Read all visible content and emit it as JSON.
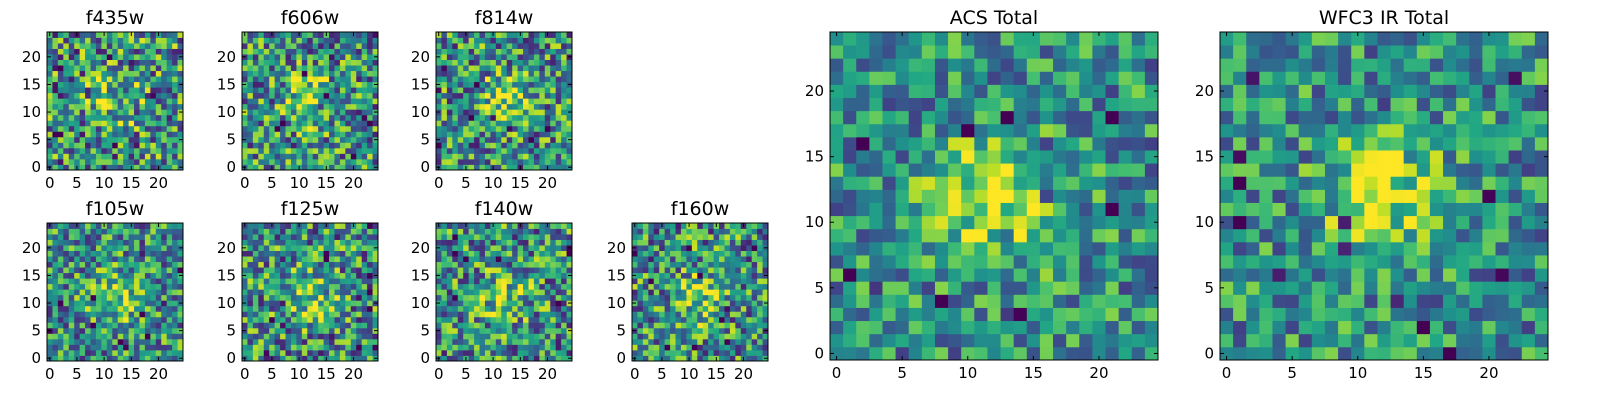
{
  "colormap": "viridis",
  "chart_data": [
    {
      "type": "heatmap",
      "title": "f435w",
      "xticks": [
        "0",
        "5",
        "10",
        "15",
        "20"
      ],
      "yticks": [
        "0",
        "5",
        "10",
        "15",
        "20"
      ],
      "xlim": [
        0,
        25
      ],
      "ylim": [
        0,
        25
      ],
      "peak": [
        12,
        12
      ],
      "peak_strength": 0.25,
      "noise": 0.65,
      "seed": 1,
      "cells": 25
    },
    {
      "type": "heatmap",
      "title": "f606w",
      "xticks": [
        "0",
        "5",
        "10",
        "15",
        "20"
      ],
      "yticks": [
        "0",
        "5",
        "10",
        "15",
        "20"
      ],
      "xlim": [
        0,
        25
      ],
      "ylim": [
        0,
        25
      ],
      "peak": [
        12,
        12
      ],
      "peak_strength": 0.35,
      "noise": 0.6,
      "seed": 2,
      "cells": 25
    },
    {
      "type": "heatmap",
      "title": "f814w",
      "xticks": [
        "0",
        "5",
        "10",
        "15",
        "20"
      ],
      "yticks": [
        "0",
        "5",
        "10",
        "15",
        "20"
      ],
      "xlim": [
        0,
        25
      ],
      "ylim": [
        0,
        25
      ],
      "peak": [
        12,
        12
      ],
      "peak_strength": 0.35,
      "noise": 0.6,
      "seed": 3,
      "cells": 25
    },
    {
      "type": "heatmap",
      "title": "f105w",
      "xticks": [
        "0",
        "5",
        "10",
        "15",
        "20"
      ],
      "yticks": [
        "0",
        "5",
        "10",
        "15",
        "20"
      ],
      "xlim": [
        0,
        25
      ],
      "ylim": [
        0,
        25
      ],
      "peak": [
        12,
        11
      ],
      "peak_strength": 0.3,
      "noise": 0.55,
      "seed": 4,
      "cells": 25
    },
    {
      "type": "heatmap",
      "title": "f125w",
      "xticks": [
        "0",
        "5",
        "10",
        "15",
        "20"
      ],
      "yticks": [
        "0",
        "5",
        "10",
        "15",
        "20"
      ],
      "xlim": [
        0,
        25
      ],
      "ylim": [
        0,
        25
      ],
      "peak": [
        12,
        11
      ],
      "peak_strength": 0.3,
      "noise": 0.6,
      "seed": 5,
      "cells": 25
    },
    {
      "type": "heatmap",
      "title": "f140w",
      "xticks": [
        "0",
        "5",
        "10",
        "15",
        "20"
      ],
      "yticks": [
        "0",
        "5",
        "10",
        "15",
        "20"
      ],
      "xlim": [
        0,
        25
      ],
      "ylim": [
        0,
        25
      ],
      "peak": [
        12,
        11
      ],
      "peak_strength": 0.3,
      "noise": 0.6,
      "seed": 6,
      "cells": 25
    },
    {
      "type": "heatmap",
      "title": "f160w",
      "xticks": [
        "0",
        "5",
        "10",
        "15",
        "20"
      ],
      "yticks": [
        "0",
        "5",
        "10",
        "15",
        "20"
      ],
      "xlim": [
        0,
        25
      ],
      "ylim": [
        0,
        25
      ],
      "peak": [
        12,
        11
      ],
      "peak_strength": 0.3,
      "noise": 0.6,
      "seed": 7,
      "cells": 25
    },
    {
      "type": "heatmap",
      "title": "ACS Total",
      "xticks": [
        "0",
        "5",
        "10",
        "15",
        "20"
      ],
      "yticks": [
        "0",
        "5",
        "10",
        "15",
        "20"
      ],
      "xlim": [
        0,
        25
      ],
      "ylim": [
        0,
        25
      ],
      "peak": [
        12,
        12
      ],
      "peak_strength": 0.45,
      "noise": 0.45,
      "seed": 8,
      "cells": 25
    },
    {
      "type": "heatmap",
      "title": "WFC3 IR Total",
      "xticks": [
        "0",
        "5",
        "10",
        "15",
        "20"
      ],
      "yticks": [
        "0",
        "5",
        "10",
        "15",
        "20"
      ],
      "xlim": [
        0,
        25
      ],
      "ylim": [
        0,
        25
      ],
      "peak": [
        12,
        12
      ],
      "peak_strength": 0.4,
      "noise": 0.45,
      "seed": 9,
      "cells": 25
    }
  ]
}
